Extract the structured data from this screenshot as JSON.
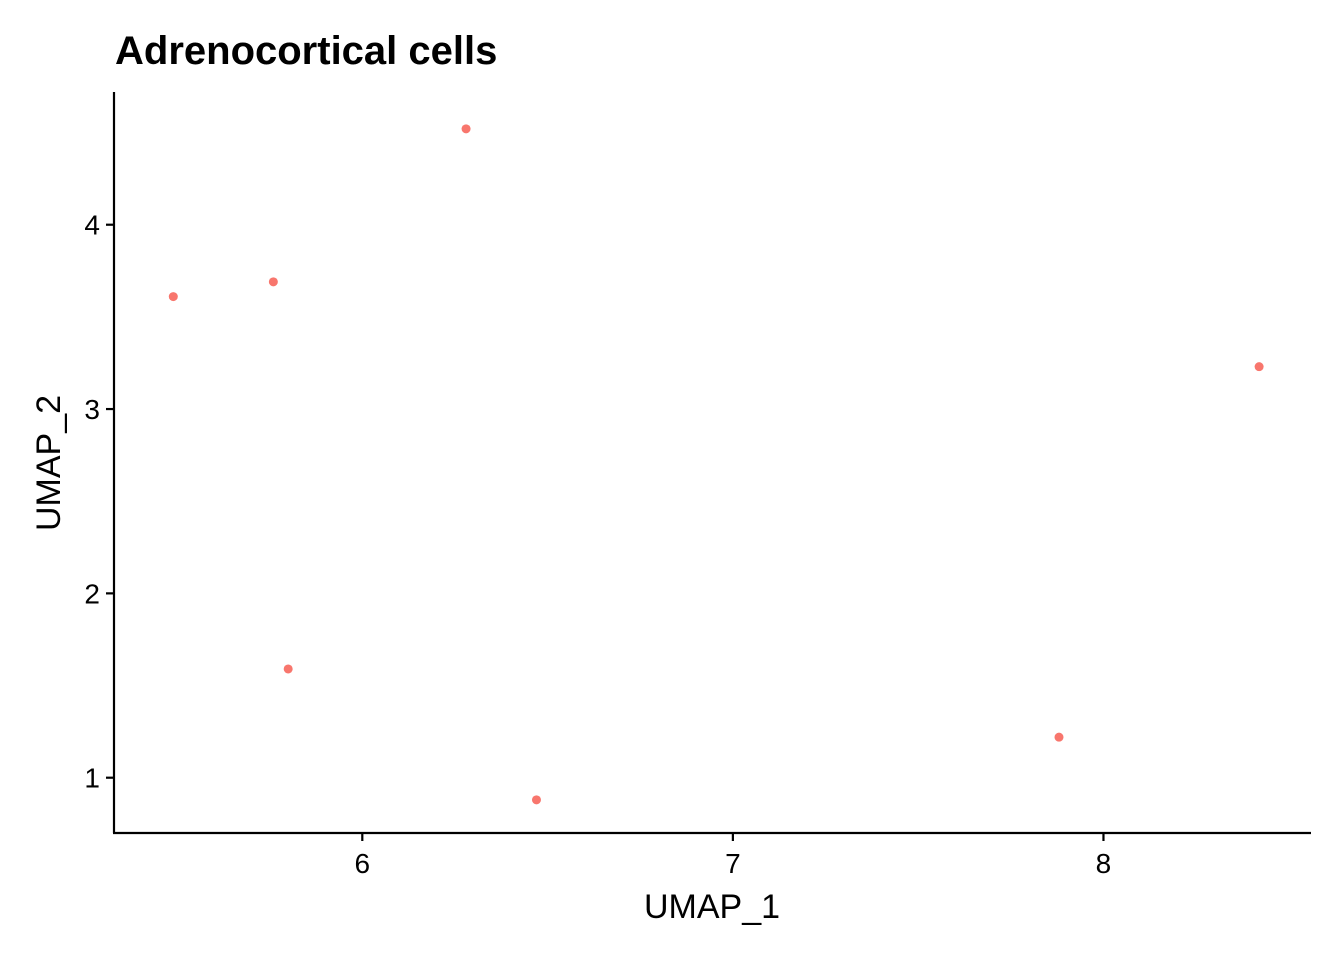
{
  "chart_data": {
    "type": "scatter",
    "title": "Adrenocortical cells",
    "xlabel": "UMAP_1",
    "ylabel": "UMAP_2",
    "xlim": [
      5.33,
      8.56
    ],
    "ylim": [
      0.7,
      4.72
    ],
    "xticks": [
      6,
      7,
      8
    ],
    "yticks": [
      1,
      2,
      3,
      4
    ],
    "grid": false,
    "legend": "none",
    "point_color": "#F8766D",
    "series": [
      {
        "x": [
          5.49,
          5.76,
          6.28,
          5.8,
          6.47,
          7.88,
          8.42
        ],
        "y": [
          3.61,
          3.69,
          4.52,
          1.59,
          0.88,
          1.22,
          3.23
        ]
      }
    ]
  }
}
